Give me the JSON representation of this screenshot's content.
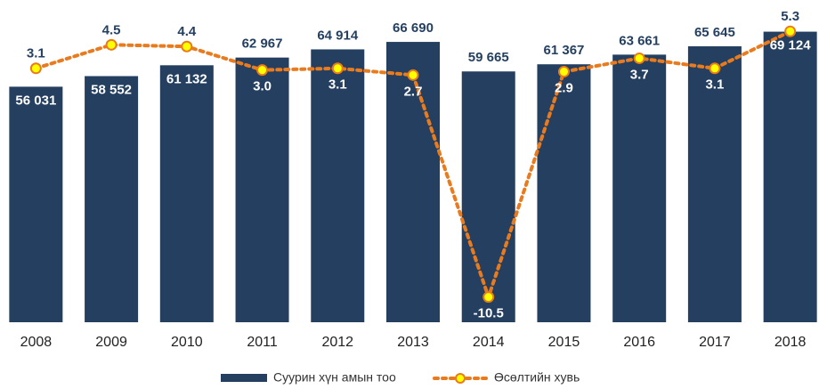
{
  "chart_data": {
    "type": "bar_line",
    "categories": [
      "2008",
      "2009",
      "2010",
      "2011",
      "2012",
      "2013",
      "2014",
      "2015",
      "2016",
      "2017",
      "2018"
    ],
    "series": [
      {
        "name": "Суурин хүн амын тоо",
        "type": "bar",
        "color": "#243f60",
        "values": [
          56031,
          58552,
          61132,
          62967,
          64914,
          66690,
          59665,
          61367,
          63661,
          65645,
          69124
        ],
        "value_labels": [
          "56 031",
          "58 552",
          "61 132",
          "62 967",
          "64 914",
          "66 690",
          "59 665",
          "61 367",
          "63 661",
          "65 645",
          "69 124"
        ]
      },
      {
        "name": "Өсөлтийн хувь",
        "type": "line",
        "axis": "y2",
        "color": "#e97b1f",
        "marker_color": "#ffff00",
        "values": [
          3.1,
          4.5,
          4.4,
          3.0,
          3.1,
          2.7,
          -10.5,
          2.9,
          3.7,
          3.1,
          5.3
        ],
        "value_labels": [
          "3.1",
          "4.5",
          "4.4",
          "3.0",
          "3.1",
          "2.7",
          "-10.5",
          "2.9",
          "3.7",
          "3.1",
          "5.3"
        ]
      }
    ],
    "ylim": [
      0,
      72000
    ],
    "y2lim": [
      -12,
      6
    ],
    "legend": "bottom"
  }
}
